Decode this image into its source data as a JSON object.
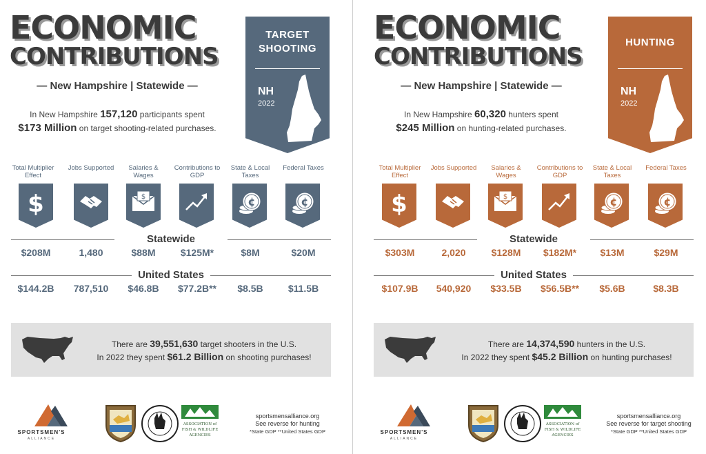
{
  "title_line1": "ECONOMIC",
  "title_line2": "CONTRIBUTIONS",
  "subtitle": "— New Hampshire | Statewide —",
  "categories": [
    "Total Multiplier Effect",
    "Jobs Supported",
    "Salaries & Wages",
    "Contributions to GDP",
    "State & Local Taxes",
    "Federal Taxes"
  ],
  "section_statewide": "Statewide",
  "section_us": "United States",
  "footer": {
    "org_name": "SPORTSMEN'S",
    "org_sub": "ALLIANCE",
    "site": "sportsmensalliance.org",
    "notes": "*State GDP **United States GDP",
    "afwa": "ASSOCIATION of FISH & WILDLIFE AGENCIES"
  },
  "panels": [
    {
      "id": "target-shooting",
      "accent": "#56697c",
      "banner_title": "TARGET SHOOTING",
      "banner_state": "NH",
      "banner_year": "2022",
      "intro1_pre": "In New Hampshire ",
      "intro1_num": "157,120",
      "intro1_post": " participants spent",
      "intro2_num": "$173 Million",
      "intro2_post": " on target shooting-related purchases.",
      "statewide": [
        "$208M",
        "1,480",
        "$88M",
        "$125M*",
        "$8M",
        "$20M"
      ],
      "us": [
        "$144.2B",
        "787,510",
        "$46.8B",
        "$77.2B**",
        "$8.5B",
        "$11.5B"
      ],
      "us_line1_pre": "There are ",
      "us_line1_num": "39,551,630",
      "us_line1_post": " target shooters in the U.S.",
      "us_line2_pre": "In 2022 they spent ",
      "us_line2_num": "$61.2 Billion",
      "us_line2_post": " on shooting purchases!",
      "reverse": "See reverse for hunting"
    },
    {
      "id": "hunting",
      "accent": "#b8693a",
      "banner_title": "HUNTING",
      "banner_state": "NH",
      "banner_year": "2022",
      "intro1_pre": "In New Hampshire ",
      "intro1_num": "60,320",
      "intro1_post": " hunters spent",
      "intro2_num": "$245 Million",
      "intro2_post": " on hunting-related purchases.",
      "statewide": [
        "$303M",
        "2,020",
        "$128M",
        "$182M*",
        "$13M",
        "$29M"
      ],
      "us": [
        "$107.9B",
        "540,920",
        "$33.5B",
        "$56.5B**",
        "$5.6B",
        "$8.3B"
      ],
      "us_line1_pre": "There are ",
      "us_line1_num": "14,374,590",
      "us_line1_post": " hunters in the U.S.",
      "us_line2_pre": "In 2022 they spent ",
      "us_line2_num": "$45.2 Billion",
      "us_line2_post": " on hunting purchases!",
      "reverse": "See reverse for target shooting"
    }
  ]
}
